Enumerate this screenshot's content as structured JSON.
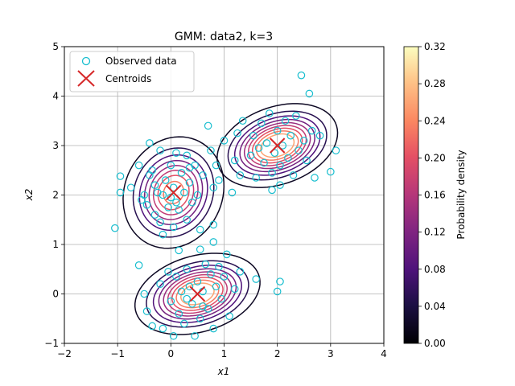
{
  "chart_data": {
    "type": "scatter",
    "title": "GMM: data2, k=3",
    "xlabel": "x1",
    "ylabel": "x2",
    "xlim": [
      -2,
      4
    ],
    "ylim": [
      -1,
      5
    ],
    "xticks": [
      -2,
      -1,
      0,
      1,
      2,
      3,
      4
    ],
    "yticks": [
      -1,
      0,
      1,
      2,
      3,
      4,
      5
    ],
    "grid": true,
    "legend": {
      "position": "top-left",
      "entries": [
        {
          "label": "Observed data",
          "marker": "open-circle",
          "color": "#17becf"
        },
        {
          "label": "Centroids",
          "marker": "x",
          "color": "#d62728"
        }
      ]
    },
    "centroids": [
      {
        "x": 0.05,
        "y": 2.05
      },
      {
        "x": 0.5,
        "y": 0.0
      },
      {
        "x": 2.0,
        "y": 3.0
      }
    ],
    "components": [
      {
        "mean": [
          0.05,
          2.05
        ],
        "std": [
          0.42,
          0.5
        ],
        "rho": 0.12
      },
      {
        "mean": [
          0.5,
          0.0
        ],
        "std": [
          0.5,
          0.35
        ],
        "rho": 0.28
      },
      {
        "mean": [
          2.0,
          3.0
        ],
        "std": [
          0.48,
          0.36
        ],
        "rho": 0.3
      }
    ],
    "contour_levels": [
      0.02,
      0.05,
      0.08,
      0.11,
      0.14,
      0.17,
      0.2,
      0.23,
      0.26
    ],
    "colorbar": {
      "label": "Probability density",
      "min": 0.0,
      "max": 0.32,
      "ticks": [
        "0.00",
        "0.04",
        "0.08",
        "0.12",
        "0.16",
        "0.20",
        "0.24",
        "0.28",
        "0.32"
      ]
    },
    "points": [
      [
        -1.05,
        1.33
      ],
      [
        -0.95,
        2.38
      ],
      [
        -0.95,
        2.05
      ],
      [
        -0.75,
        2.15
      ],
      [
        -0.6,
        2.6
      ],
      [
        -0.55,
        1.9
      ],
      [
        -0.5,
        2.0
      ],
      [
        -0.45,
        1.8
      ],
      [
        -0.4,
        3.05
      ],
      [
        -0.35,
        2.5
      ],
      [
        -0.3,
        2.2
      ],
      [
        -0.3,
        1.6
      ],
      [
        -0.25,
        2.05
      ],
      [
        -0.2,
        1.45
      ],
      [
        -0.2,
        2.9
      ],
      [
        -0.15,
        1.2
      ],
      [
        -0.1,
        2.3
      ],
      [
        -0.05,
        1.75
      ],
      [
        0.0,
        2.6
      ],
      [
        0.0,
        1.95
      ],
      [
        0.05,
        1.35
      ],
      [
        0.05,
        2.15
      ],
      [
        0.1,
        2.85
      ],
      [
        0.15,
        1.7
      ],
      [
        0.2,
        2.45
      ],
      [
        0.25,
        2.05
      ],
      [
        0.3,
        1.5
      ],
      [
        0.3,
        2.8
      ],
      [
        0.35,
        2.25
      ],
      [
        0.4,
        1.85
      ],
      [
        0.45,
        2.6
      ],
      [
        0.5,
        2.0
      ],
      [
        0.55,
        1.3
      ],
      [
        0.6,
        2.4
      ],
      [
        0.7,
        3.4
      ],
      [
        0.75,
        2.9
      ],
      [
        0.8,
        1.4
      ],
      [
        0.8,
        2.15
      ],
      [
        0.9,
        2.3
      ],
      [
        0.85,
        2.6
      ],
      [
        -0.4,
        2.4
      ],
      [
        -0.15,
        2.0
      ],
      [
        0.1,
        1.85
      ],
      [
        0.35,
        2.55
      ],
      [
        -0.6,
        0.58
      ],
      [
        -0.5,
        0.0
      ],
      [
        -0.45,
        -0.35
      ],
      [
        -0.35,
        -0.65
      ],
      [
        -0.2,
        0.2
      ],
      [
        -0.15,
        -0.7
      ],
      [
        -0.05,
        0.45
      ],
      [
        0.0,
        -0.15
      ],
      [
        0.05,
        -0.85
      ],
      [
        0.1,
        0.35
      ],
      [
        0.15,
        -0.4
      ],
      [
        0.2,
        0.05
      ],
      [
        0.25,
        -0.6
      ],
      [
        0.3,
        0.5
      ],
      [
        0.35,
        0.15
      ],
      [
        0.4,
        -0.2
      ],
      [
        0.45,
        -0.85
      ],
      [
        0.5,
        0.25
      ],
      [
        0.55,
        0.9
      ],
      [
        0.55,
        -0.5
      ],
      [
        0.6,
        0.05
      ],
      [
        0.65,
        0.6
      ],
      [
        0.7,
        -0.3
      ],
      [
        0.75,
        0.4
      ],
      [
        0.8,
        -0.7
      ],
      [
        0.85,
        0.15
      ],
      [
        0.9,
        0.55
      ],
      [
        0.95,
        -0.1
      ],
      [
        1.0,
        0.35
      ],
      [
        1.05,
        0.8
      ],
      [
        1.1,
        -0.45
      ],
      [
        1.2,
        0.1
      ],
      [
        1.3,
        0.45
      ],
      [
        1.6,
        0.3
      ],
      [
        2.0,
        0.05
      ],
      [
        2.05,
        0.25
      ],
      [
        0.15,
        0.88
      ],
      [
        0.8,
        1.05
      ],
      [
        0.3,
        -0.1
      ],
      [
        0.6,
        -0.25
      ],
      [
        1.0,
        3.1
      ],
      [
        1.15,
        2.05
      ],
      [
        1.2,
        2.7
      ],
      [
        1.25,
        3.25
      ],
      [
        1.3,
        2.4
      ],
      [
        1.35,
        3.5
      ],
      [
        1.5,
        2.8
      ],
      [
        1.55,
        3.2
      ],
      [
        1.6,
        2.35
      ],
      [
        1.65,
        2.95
      ],
      [
        1.7,
        3.45
      ],
      [
        1.75,
        2.65
      ],
      [
        1.8,
        3.05
      ],
      [
        1.85,
        3.65
      ],
      [
        1.9,
        2.45
      ],
      [
        1.95,
        2.85
      ],
      [
        2.0,
        3.3
      ],
      [
        2.05,
        2.6
      ],
      [
        2.1,
        3.0
      ],
      [
        2.15,
        3.5
      ],
      [
        2.2,
        2.75
      ],
      [
        2.25,
        3.2
      ],
      [
        2.3,
        2.4
      ],
      [
        2.35,
        3.6
      ],
      [
        2.4,
        2.9
      ],
      [
        2.45,
        4.42
      ],
      [
        2.5,
        3.1
      ],
      [
        2.55,
        2.7
      ],
      [
        2.6,
        4.05
      ],
      [
        2.65,
        3.3
      ],
      [
        2.7,
        2.35
      ],
      [
        2.8,
        3.2
      ],
      [
        3.0,
        2.47
      ],
      [
        3.1,
        2.9
      ],
      [
        2.05,
        2.2
      ],
      [
        1.9,
        2.1
      ]
    ]
  }
}
